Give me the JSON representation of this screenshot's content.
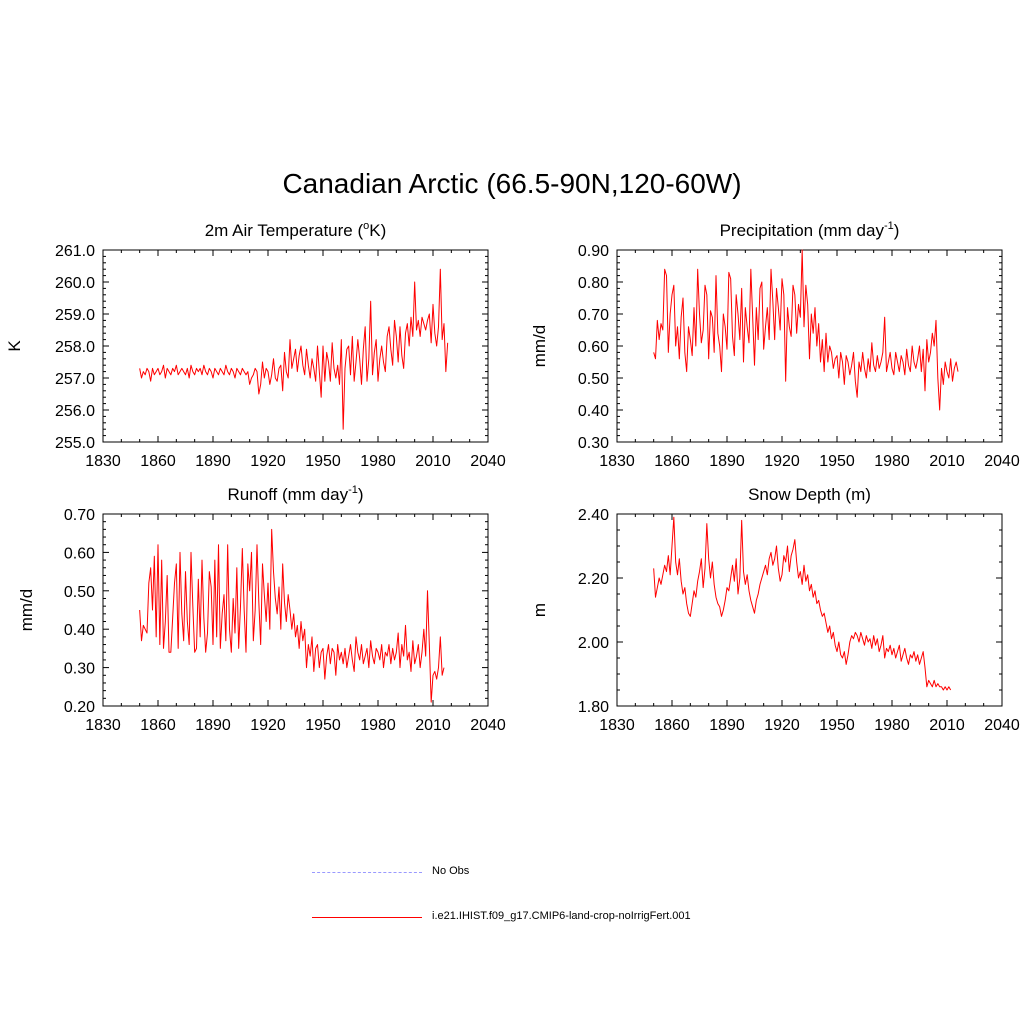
{
  "title": "Canadian Arctic (66.5-90N,120-60W)",
  "legend": [
    {
      "label": "No Obs",
      "color": "#9999ff",
      "dash": "dashed"
    },
    {
      "label": "i.e21.IHIST.f09_g17.CMIP6-land-crop-noIrrigFert.001",
      "color": "#ff0000",
      "dash": "solid"
    }
  ],
  "chart_data": [
    {
      "type": "line",
      "title_main": "2m Air Temperature (",
      "title_sup": "o",
      "title_post": "K)",
      "ylabel": "K",
      "xlim": [
        1830,
        2040
      ],
      "ylim": [
        255.0,
        261.0
      ],
      "xticks": [
        "1830",
        "1860",
        "1890",
        "1920",
        "1950",
        "1980",
        "2010",
        "2040"
      ],
      "yticks": [
        "255.0",
        "256.0",
        "257.0",
        "258.0",
        "259.0",
        "260.0",
        "261.0"
      ],
      "x_start": 1850,
      "series": [
        {
          "name": "i.e21.IHIST.f09_g17.CMIP6-land-crop-noIrrigFert.001",
          "color": "#ff0000",
          "values": [
            257.3,
            257.0,
            257.2,
            257.1,
            257.3,
            257.2,
            256.9,
            257.3,
            257.1,
            257.2,
            257.3,
            257.1,
            257.2,
            257.4,
            257.0,
            257.3,
            257.2,
            257.1,
            257.3,
            257.2,
            257.4,
            257.1,
            257.2,
            257.3,
            257.2,
            257.1,
            257.3,
            257.0,
            257.4,
            257.2,
            257.1,
            257.3,
            257.2,
            257.3,
            257.1,
            257.4,
            257.2,
            257.1,
            257.3,
            257.2,
            257.0,
            257.3,
            257.2,
            257.1,
            257.3,
            257.2,
            257.1,
            257.4,
            257.2,
            257.1,
            257.3,
            257.2,
            257.0,
            257.3,
            257.2,
            257.1,
            257.3,
            257.2,
            257.1,
            257.2,
            256.8,
            257.0,
            257.1,
            257.3,
            257.2,
            256.5,
            256.8,
            257.5,
            257.0,
            257.3,
            257.2,
            256.8,
            257.1,
            257.6,
            257.0,
            256.9,
            257.3,
            257.4,
            256.6,
            257.8,
            257.2,
            257.0,
            258.2,
            257.3,
            257.6,
            257.9,
            257.2,
            257.7,
            258.0,
            257.4,
            257.1,
            257.9,
            257.4,
            257.0,
            257.6,
            257.3,
            256.9,
            258.0,
            257.2,
            256.4,
            258.0,
            256.9,
            257.8,
            257.5,
            256.9,
            258.1,
            257.3,
            257.0,
            257.4,
            256.8,
            258.2,
            255.4,
            257.3,
            257.9,
            258.0,
            257.1,
            258.3,
            256.9,
            257.5,
            258.2,
            257.6,
            256.8,
            257.9,
            258.6,
            256.9,
            257.6,
            259.4,
            257.1,
            257.8,
            258.2,
            256.9,
            257.6,
            258.0,
            257.5,
            257.2,
            258.3,
            258.6,
            257.9,
            257.4,
            258.8,
            258.3,
            257.5,
            258.6,
            257.7,
            257.3,
            258.4,
            258.7,
            258.0,
            258.9,
            258.3,
            260.0,
            258.5,
            258.8,
            258.3,
            258.9,
            258.7,
            258.5,
            258.8,
            259.0,
            258.1,
            259.3,
            258.4,
            258.0,
            258.6,
            260.4,
            258.2,
            258.7,
            257.2,
            258.1
          ]
        }
      ]
    },
    {
      "type": "line",
      "title_main": "Precipitation (mm day",
      "title_sup": "-1",
      "title_post": ")",
      "ylabel": "mm/d",
      "xlim": [
        1830,
        2040
      ],
      "ylim": [
        0.3,
        0.9
      ],
      "xticks": [
        "1830",
        "1860",
        "1890",
        "1920",
        "1950",
        "1980",
        "2010",
        "2040"
      ],
      "yticks": [
        "0.30",
        "0.40",
        "0.50",
        "0.60",
        "0.70",
        "0.80",
        "0.90"
      ],
      "x_start": 1850,
      "series": [
        {
          "name": "i.e21.IHIST.f09_g17.CMIP6-land-crop-noIrrigFert.001",
          "color": "#ff0000",
          "values": [
            0.58,
            0.56,
            0.68,
            0.62,
            0.67,
            0.65,
            0.84,
            0.82,
            0.58,
            0.7,
            0.76,
            0.79,
            0.6,
            0.66,
            0.56,
            0.69,
            0.75,
            0.58,
            0.52,
            0.66,
            0.62,
            0.57,
            0.72,
            0.6,
            0.84,
            0.7,
            0.61,
            0.65,
            0.79,
            0.76,
            0.56,
            0.71,
            0.69,
            0.58,
            0.82,
            0.64,
            0.6,
            0.52,
            0.7,
            0.66,
            0.59,
            0.83,
            0.81,
            0.63,
            0.57,
            0.76,
            0.7,
            0.62,
            0.78,
            0.55,
            0.72,
            0.66,
            0.61,
            0.84,
            0.69,
            0.54,
            0.72,
            0.62,
            0.78,
            0.8,
            0.59,
            0.66,
            0.72,
            0.62,
            0.84,
            0.74,
            0.62,
            0.78,
            0.72,
            0.65,
            0.81,
            0.76,
            0.49,
            0.72,
            0.66,
            0.63,
            0.79,
            0.76,
            0.64,
            0.73,
            0.69,
            0.9,
            0.66,
            0.79,
            0.73,
            0.56,
            0.7,
            0.64,
            0.72,
            0.6,
            0.67,
            0.55,
            0.62,
            0.52,
            0.64,
            0.55,
            0.6,
            0.58,
            0.53,
            0.56,
            0.57,
            0.5,
            0.58,
            0.55,
            0.48,
            0.57,
            0.55,
            0.51,
            0.54,
            0.58,
            0.49,
            0.44,
            0.55,
            0.52,
            0.58,
            0.53,
            0.5,
            0.56,
            0.52,
            0.61,
            0.54,
            0.52,
            0.57,
            0.53,
            0.55,
            0.58,
            0.69,
            0.52,
            0.55,
            0.58,
            0.53,
            0.51,
            0.58,
            0.55,
            0.52,
            0.57,
            0.55,
            0.51,
            0.59,
            0.54,
            0.52,
            0.6,
            0.55,
            0.53,
            0.56,
            0.6,
            0.52,
            0.59,
            0.46,
            0.62,
            0.55,
            0.58,
            0.64,
            0.6,
            0.68,
            0.5,
            0.4,
            0.53,
            0.48,
            0.55,
            0.52,
            0.5,
            0.56,
            0.49,
            0.53,
            0.55,
            0.52
          ]
        }
      ]
    },
    {
      "type": "line",
      "title_main": "Runoff (mm day",
      "title_sup": "-1",
      "title_post": ")",
      "ylabel": "mm/d",
      "xlim": [
        1830,
        2040
      ],
      "ylim": [
        0.2,
        0.7
      ],
      "xticks": [
        "1830",
        "1860",
        "1890",
        "1920",
        "1950",
        "1980",
        "2010",
        "2040"
      ],
      "yticks": [
        "0.20",
        "0.30",
        "0.40",
        "0.50",
        "0.60",
        "0.70"
      ],
      "x_start": 1850,
      "series": [
        {
          "name": "i.e21.IHIST.f09_g17.CMIP6-land-crop-noIrrigFert.001",
          "color": "#ff0000",
          "values": [
            0.45,
            0.37,
            0.41,
            0.4,
            0.39,
            0.52,
            0.56,
            0.45,
            0.59,
            0.38,
            0.62,
            0.36,
            0.58,
            0.35,
            0.42,
            0.54,
            0.34,
            0.34,
            0.43,
            0.52,
            0.57,
            0.35,
            0.6,
            0.44,
            0.37,
            0.55,
            0.42,
            0.36,
            0.6,
            0.46,
            0.34,
            0.35,
            0.53,
            0.38,
            0.58,
            0.43,
            0.34,
            0.39,
            0.55,
            0.51,
            0.36,
            0.58,
            0.38,
            0.62,
            0.35,
            0.44,
            0.49,
            0.37,
            0.62,
            0.4,
            0.34,
            0.48,
            0.39,
            0.56,
            0.35,
            0.46,
            0.61,
            0.45,
            0.34,
            0.57,
            0.5,
            0.6,
            0.37,
            0.45,
            0.62,
            0.47,
            0.36,
            0.57,
            0.49,
            0.42,
            0.52,
            0.4,
            0.66,
            0.55,
            0.48,
            0.44,
            0.51,
            0.4,
            0.57,
            0.47,
            0.42,
            0.49,
            0.45,
            0.4,
            0.44,
            0.38,
            0.41,
            0.35,
            0.42,
            0.37,
            0.4,
            0.3,
            0.36,
            0.33,
            0.38,
            0.29,
            0.35,
            0.36,
            0.3,
            0.34,
            0.35,
            0.27,
            0.33,
            0.36,
            0.31,
            0.35,
            0.34,
            0.28,
            0.36,
            0.32,
            0.34,
            0.31,
            0.35,
            0.3,
            0.33,
            0.36,
            0.32,
            0.29,
            0.38,
            0.34,
            0.32,
            0.36,
            0.31,
            0.33,
            0.35,
            0.3,
            0.37,
            0.33,
            0.31,
            0.35,
            0.34,
            0.32,
            0.36,
            0.3,
            0.34,
            0.33,
            0.36,
            0.31,
            0.35,
            0.32,
            0.34,
            0.39,
            0.3,
            0.36,
            0.33,
            0.41,
            0.32,
            0.34,
            0.29,
            0.37,
            0.31,
            0.33,
            0.36,
            0.3,
            0.34,
            0.4,
            0.33,
            0.5,
            0.36,
            0.21,
            0.28,
            0.29,
            0.27,
            0.3,
            0.38,
            0.28,
            0.3
          ]
        }
      ]
    },
    {
      "type": "line",
      "title_main": "Snow Depth (m)",
      "title_sup": "",
      "title_post": "",
      "ylabel": "m",
      "xlim": [
        1830,
        2040
      ],
      "ylim": [
        1.8,
        2.4
      ],
      "xticks": [
        "1830",
        "1860",
        "1890",
        "1920",
        "1950",
        "1980",
        "2010",
        "2040"
      ],
      "yticks": [
        "1.80",
        "2.00",
        "2.20",
        "2.40"
      ],
      "y_minor_step": 0.05,
      "x_start": 1850,
      "series": [
        {
          "name": "i.e21.IHIST.f09_g17.CMIP6-land-crop-noIrrigFert.001",
          "color": "#ff0000",
          "values": [
            2.23,
            2.14,
            2.17,
            2.2,
            2.18,
            2.21,
            2.24,
            2.22,
            2.27,
            2.21,
            2.3,
            2.39,
            2.25,
            2.21,
            2.26,
            2.19,
            2.15,
            2.17,
            2.12,
            2.09,
            2.08,
            2.12,
            2.16,
            2.14,
            2.19,
            2.22,
            2.26,
            2.17,
            2.23,
            2.37,
            2.26,
            2.2,
            2.25,
            2.18,
            2.14,
            2.12,
            2.11,
            2.08,
            2.1,
            2.13,
            2.17,
            2.16,
            2.2,
            2.24,
            2.19,
            2.26,
            2.15,
            2.2,
            2.38,
            2.22,
            2.18,
            2.21,
            2.16,
            2.13,
            2.11,
            2.09,
            2.13,
            2.15,
            2.18,
            2.2,
            2.22,
            2.24,
            2.21,
            2.26,
            2.28,
            2.24,
            2.26,
            2.3,
            2.23,
            2.19,
            2.21,
            2.27,
            2.25,
            2.3,
            2.22,
            2.27,
            2.29,
            2.32,
            2.25,
            2.2,
            2.22,
            2.18,
            2.24,
            2.19,
            2.21,
            2.16,
            2.18,
            2.14,
            2.16,
            2.12,
            2.13,
            2.1,
            2.08,
            2.09,
            2.06,
            2.03,
            2.05,
            2.01,
            2.03,
            1.99,
            1.97,
            2.0,
            1.96,
            1.95,
            1.97,
            1.93,
            1.96,
            2.0,
            2.02,
            2.01,
            2.03,
            2.02,
            2.0,
            2.03,
            2.01,
            1.99,
            2.02,
            2.0,
            2.01,
            1.98,
            2.02,
            1.99,
            2.01,
            1.97,
            1.99,
            2.02,
            1.95,
            1.98,
            1.97,
            1.99,
            1.96,
            1.98,
            1.95,
            1.97,
            1.99,
            1.94,
            1.96,
            1.98,
            1.95,
            1.93,
            1.96,
            1.95,
            1.97,
            1.94,
            1.96,
            1.93,
            1.95,
            1.97,
            1.92,
            1.86,
            1.88,
            1.87,
            1.86,
            1.88,
            1.86,
            1.87,
            1.86,
            1.86,
            1.85,
            1.86,
            1.85,
            1.86,
            1.85
          ]
        }
      ]
    }
  ]
}
